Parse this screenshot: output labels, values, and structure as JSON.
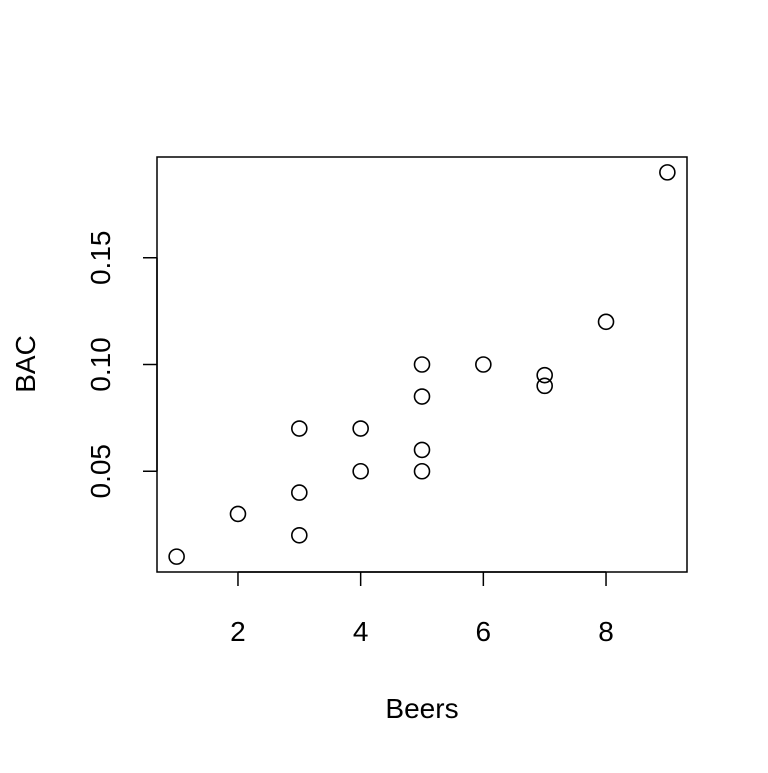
{
  "chart_data": {
    "type": "scatter",
    "title": "",
    "xlabel": "Beers",
    "ylabel": "BAC",
    "xlim": [
      0.68,
      9.32
    ],
    "ylim": [
      0.0028,
      0.1972
    ],
    "xticks": [
      2,
      4,
      6,
      8
    ],
    "xtick_labels": [
      "2",
      "4",
      "6",
      "8"
    ],
    "yticks": [
      0.05,
      0.1,
      0.15
    ],
    "ytick_labels": [
      "0.05",
      "0.10",
      "0.15"
    ],
    "grid": false,
    "legend": "none",
    "marker": "open-circle",
    "color": "#000000",
    "points": [
      {
        "x": 1,
        "y": 0.01
      },
      {
        "x": 2,
        "y": 0.03
      },
      {
        "x": 3,
        "y": 0.02
      },
      {
        "x": 3,
        "y": 0.04
      },
      {
        "x": 3,
        "y": 0.07
      },
      {
        "x": 4,
        "y": 0.05
      },
      {
        "x": 4,
        "y": 0.07
      },
      {
        "x": 5,
        "y": 0.05
      },
      {
        "x": 5,
        "y": 0.06
      },
      {
        "x": 5,
        "y": 0.085
      },
      {
        "x": 5,
        "y": 0.1
      },
      {
        "x": 6,
        "y": 0.1
      },
      {
        "x": 7,
        "y": 0.09
      },
      {
        "x": 7,
        "y": 0.095
      },
      {
        "x": 8,
        "y": 0.12
      },
      {
        "x": 9,
        "y": 0.19
      }
    ]
  }
}
